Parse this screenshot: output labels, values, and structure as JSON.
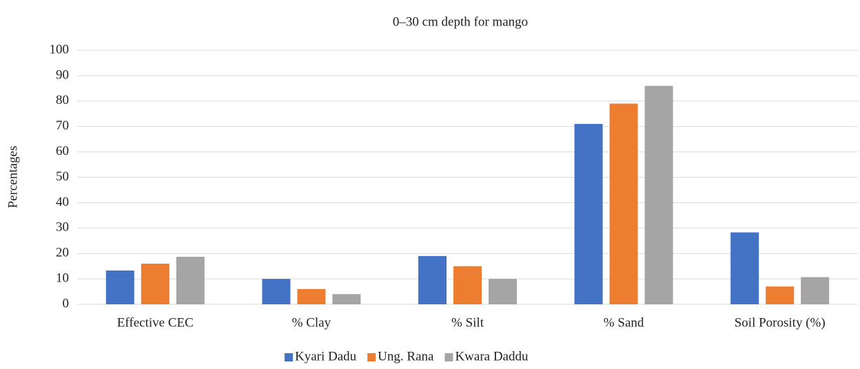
{
  "chart_data": {
    "type": "bar",
    "title": "0–30 cm depth for mango",
    "y_label": "Percentages",
    "categories": [
      "Effective CEC",
      "% Clay",
      "% Silt",
      "% Sand",
      "Soil Porosity (%)"
    ],
    "series": [
      {
        "name": "Kyari Dadu",
        "color": "#4472c4",
        "values": [
          13.3,
          10,
          19,
          71,
          28.3
        ]
      },
      {
        "name": "Ung. Rana",
        "color": "#ed7d31",
        "values": [
          16,
          6,
          15,
          79,
          7
        ]
      },
      {
        "name": "Kwara Daddu",
        "color": "#a5a5a5",
        "values": [
          18.7,
          4,
          10,
          86,
          10.7
        ]
      }
    ],
    "ylim": [
      0,
      100
    ],
    "yticks": [
      0,
      10,
      20,
      30,
      40,
      50,
      60,
      70,
      80,
      90,
      100
    ],
    "grid": true,
    "legend": "bottom"
  }
}
